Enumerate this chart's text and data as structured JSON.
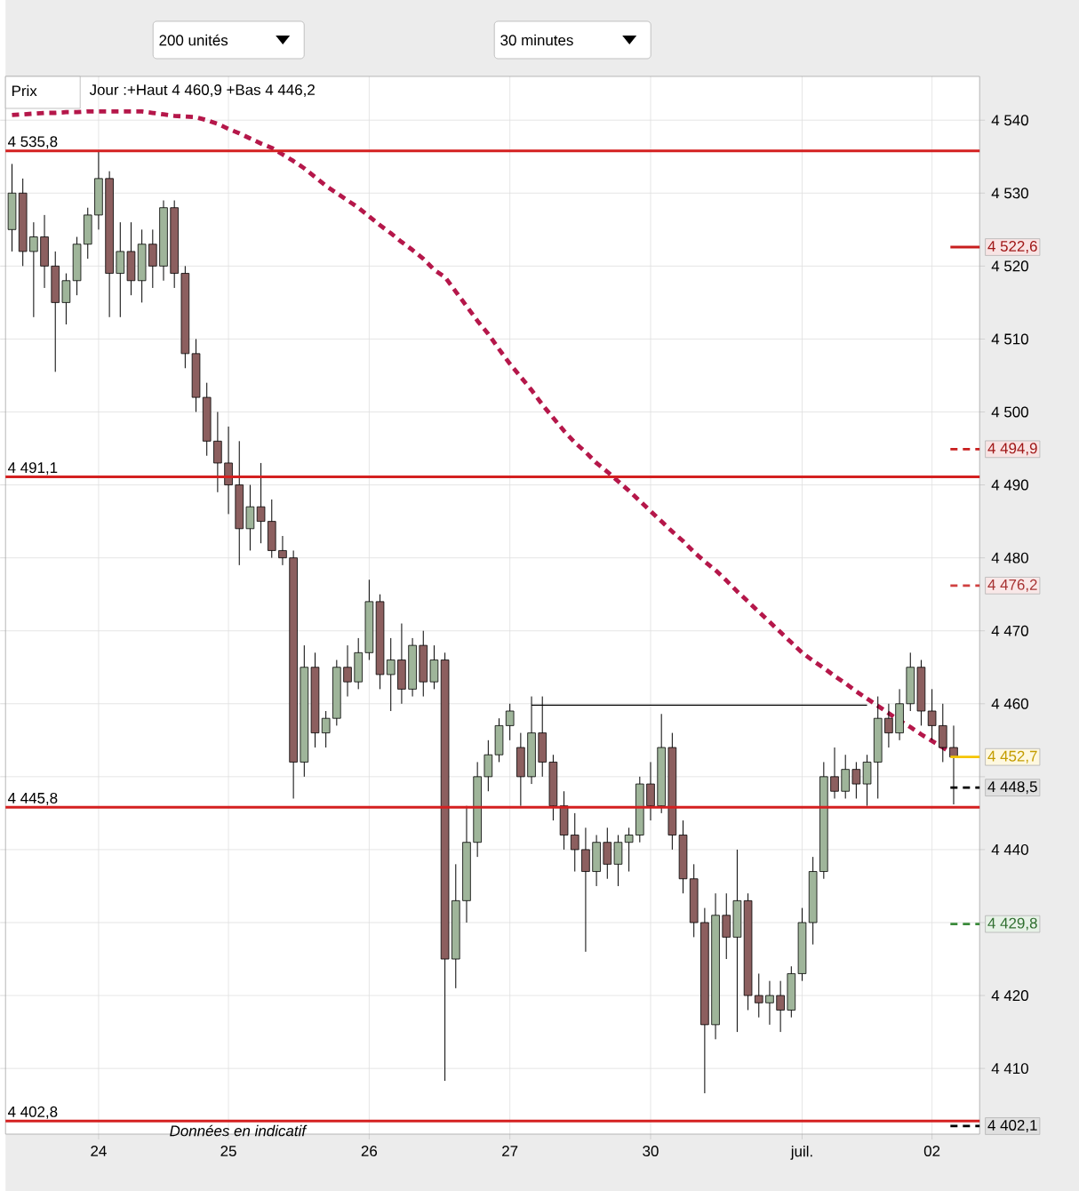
{
  "chart_data": {
    "type": "candlestick",
    "annotations": [
      "200 unités",
      "30 minutes",
      "Prix",
      "Jour :+Haut 4 460,9 +Bas 4 446,2",
      "Données en indicatif"
    ],
    "categories": [
      null,
      null,
      null,
      null,
      null,
      null,
      null,
      null,
      "24",
      null,
      null,
      null,
      null,
      null,
      null,
      null,
      null,
      null,
      null,
      null,
      "25",
      null,
      null,
      null,
      null,
      null,
      null,
      null,
      null,
      null,
      null,
      null,
      null,
      "26",
      null,
      null,
      null,
      null,
      null,
      null,
      null,
      null,
      null,
      null,
      null,
      null,
      "27",
      null,
      null,
      null,
      null,
      null,
      null,
      null,
      null,
      null,
      null,
      null,
      null,
      "30",
      null,
      null,
      null,
      null,
      null,
      null,
      null,
      null,
      null,
      null,
      null,
      null,
      null,
      "juil.",
      null,
      null,
      null,
      null,
      null,
      null,
      null,
      null,
      null,
      null,
      null,
      "02",
      null,
      null
    ],
    "ohlc": [
      [
        4525,
        4534,
        4522,
        4530
      ],
      [
        4530,
        4532,
        4520,
        4522
      ],
      [
        4522,
        4526,
        4513,
        4524
      ],
      [
        4524,
        4527,
        4517,
        4520
      ],
      [
        4520,
        4522,
        4505.5,
        4515
      ],
      [
        4515,
        4519,
        4512,
        4518
      ],
      [
        4518,
        4524,
        4516,
        4523
      ],
      [
        4523,
        4528,
        4521,
        4527
      ],
      [
        4527,
        4535.8,
        4525,
        4532
      ],
      [
        4532,
        4533,
        4513,
        4519
      ],
      [
        4519,
        4526,
        4513,
        4522
      ],
      [
        4522,
        4526,
        4516,
        4518
      ],
      [
        4518,
        4525,
        4515,
        4523
      ],
      [
        4523,
        4525,
        4517,
        4520
      ],
      [
        4520,
        4529,
        4518,
        4528
      ],
      [
        4528,
        4529,
        4517,
        4519
      ],
      [
        4519,
        4520,
        4506,
        4508
      ],
      [
        4508,
        4510,
        4500,
        4502
      ],
      [
        4502,
        4504,
        4494,
        4496
      ],
      [
        4496,
        4500,
        4489,
        4493
      ],
      [
        4493,
        4498,
        4486,
        4490
      ],
      [
        4490,
        4496,
        4479,
        4484
      ],
      [
        4484,
        4490,
        4481,
        4487
      ],
      [
        4487,
        4493,
        4482,
        4485
      ],
      [
        4485,
        4488,
        4480,
        4481
      ],
      [
        4481,
        4483,
        4479,
        4480
      ],
      [
        4480,
        4481,
        4447,
        4452
      ],
      [
        4452,
        4468,
        4450,
        4465
      ],
      [
        4465,
        4467,
        4454,
        4456
      ],
      [
        4456,
        4459,
        4454,
        4458
      ],
      [
        4458,
        4466,
        4457,
        4465
      ],
      [
        4465,
        4468,
        4461,
        4463
      ],
      [
        4463,
        4469,
        4462,
        4467
      ],
      [
        4467,
        4477,
        4466,
        4474
      ],
      [
        4474,
        4475,
        4462,
        4464
      ],
      [
        4464,
        4469,
        4459,
        4466
      ],
      [
        4466,
        4471,
        4460,
        4462
      ],
      [
        4462,
        4469,
        4461,
        4468
      ],
      [
        4468,
        4470,
        4461,
        4463
      ],
      [
        4463,
        4468,
        4462,
        4466
      ],
      [
        4466,
        4467,
        4408.3,
        4425
      ],
      [
        4425,
        4438,
        4421,
        4433
      ],
      [
        4433,
        4446,
        4430,
        4441
      ],
      [
        4441,
        4452,
        4439,
        4450
      ],
      [
        4450,
        4455,
        4448,
        4453
      ],
      [
        4453,
        4458,
        4452,
        4457
      ],
      [
        4457,
        4460,
        4455,
        4459
      ],
      [
        4454,
        4456,
        4446,
        4450
      ],
      [
        4450,
        4461,
        4449,
        4456
      ],
      [
        4456,
        4461,
        4450,
        4452
      ],
      [
        4452,
        4453,
        4444,
        4446
      ],
      [
        4446,
        4448,
        4440,
        4442
      ],
      [
        4442,
        4445,
        4437,
        4440
      ],
      [
        4440,
        4443,
        4426,
        4437
      ],
      [
        4437,
        4442,
        4435,
        4441
      ],
      [
        4441,
        4443,
        4436,
        4438
      ],
      [
        4438,
        4442,
        4435,
        4441
      ],
      [
        4441,
        4443,
        4437,
        4442
      ],
      [
        4442,
        4450,
        4441,
        4449
      ],
      [
        4449,
        4452,
        4444,
        4446
      ],
      [
        4446,
        4458.6,
        4445,
        4454
      ],
      [
        4454,
        4456,
        4440,
        4442
      ],
      [
        4442,
        4444,
        4434,
        4436
      ],
      [
        4436,
        4438,
        4428,
        4430
      ],
      [
        4430,
        4432,
        4406.6,
        4416
      ],
      [
        4416,
        4434,
        4414,
        4431
      ],
      [
        4431,
        4434,
        4425,
        4428
      ],
      [
        4428,
        4440,
        4415,
        4433
      ],
      [
        4433,
        4434,
        4418,
        4420
      ],
      [
        4420,
        4423,
        4417,
        4419
      ],
      [
        4419,
        4422,
        4416,
        4420
      ],
      [
        4420,
        4422,
        4415,
        4418
      ],
      [
        4418,
        4424,
        4417,
        4423
      ],
      [
        4423,
        4432,
        4422,
        4430
      ],
      [
        4430,
        4439,
        4427,
        4437
      ],
      [
        4437,
        4452,
        4436,
        4450
      ],
      [
        4450,
        4454,
        4447,
        4448
      ],
      [
        4448,
        4453,
        4447,
        4451
      ],
      [
        4451,
        4452,
        4447,
        4449
      ],
      [
        4449,
        4453,
        4446,
        4452
      ],
      [
        4452,
        4461,
        4447,
        4458
      ],
      [
        4458,
        4460,
        4454,
        4456
      ],
      [
        4456,
        4462,
        4455,
        4460
      ],
      [
        4460,
        4467,
        4459,
        4465
      ],
      [
        4465,
        4466,
        4457,
        4459
      ],
      [
        4459,
        4462,
        4455,
        4457
      ],
      [
        4457,
        4460,
        4452,
        4454
      ],
      [
        4454,
        4457,
        4446.2,
        4452.7
      ]
    ],
    "series": [
      {
        "type": "line",
        "color": "#b5174a",
        "line_style": "dashed",
        "values": [
          4540.7,
          4540.8,
          4540.9,
          4541.0,
          4541.0,
          4541.1,
          4541.1,
          4541.2,
          4541.2,
          4541.2,
          4541.2,
          4541.2,
          4541.2,
          4541.0,
          4540.8,
          4540.6,
          4540.5,
          4540.4,
          4540.0,
          4539.5,
          4538.8,
          4538.2,
          4537.5,
          4536.8,
          4536.2,
          4535.3,
          4534.4,
          4533.4,
          4532.2,
          4531.0,
          4530.0,
          4529.0,
          4528.0,
          4526.8,
          4525.6,
          4524.5,
          4523.3,
          4522.2,
          4521.0,
          4519.5,
          4518.5,
          4516.5,
          4514.5,
          4512.5,
          4510.7,
          4508.6,
          4506.6,
          4504.8,
          4503.0,
          4501.0,
          4499.2,
          4497.4,
          4495.8,
          4494.5,
          4493.0,
          4491.8,
          4490.5,
          4489.2,
          4487.8,
          4486.4,
          4485.0,
          4483.6,
          4482.3,
          4480.8,
          4479.5,
          4478.3,
          4476.9,
          4475.4,
          4474.0,
          4472.6,
          4471.2,
          4469.8,
          4468.4,
          4467.0,
          4465.9,
          4464.9,
          4463.8,
          4462.8,
          4461.7,
          4460.7,
          4459.7,
          4458.7,
          4457.7,
          4456.8,
          4455.8,
          4454.9,
          4454.0,
          4453.0
        ]
      },
      {
        "type": "line",
        "color": "#000000",
        "line_style": "solid",
        "values": [
          null,
          null,
          null,
          null,
          null,
          null,
          null,
          null,
          null,
          null,
          null,
          null,
          null,
          null,
          null,
          null,
          null,
          null,
          null,
          null,
          null,
          null,
          null,
          null,
          null,
          null,
          null,
          null,
          null,
          null,
          null,
          null,
          null,
          null,
          null,
          null,
          null,
          null,
          null,
          null,
          null,
          null,
          null,
          null,
          null,
          null,
          null,
          null,
          4459.8,
          4459.8,
          4459.8,
          4459.8,
          4459.8,
          4459.8,
          4459.8,
          4459.8,
          4459.8,
          4459.8,
          4459.8,
          4459.8,
          4459.8,
          4459.8,
          4459.8,
          4459.8,
          4459.8,
          4459.8,
          4459.8,
          4459.8,
          4459.8,
          4459.8,
          4459.8,
          4459.8,
          4459.8,
          4459.8,
          4459.8,
          4459.8,
          4459.8,
          4459.8,
          4459.8,
          4459.8,
          null,
          null,
          null,
          null,
          null,
          null,
          null,
          null
        ]
      }
    ],
    "ylim": [
      4401,
      4546
    ],
    "yticks": [
      {
        "value": 4410,
        "label": "4 410"
      },
      {
        "value": 4420,
        "label": "4 420"
      },
      {
        "value": 4430,
        "label": null
      },
      {
        "value": 4440,
        "label": "4 440"
      },
      {
        "value": 4450,
        "label": null
      },
      {
        "value": 4460,
        "label": "4 460"
      },
      {
        "value": 4470,
        "label": "4 470"
      },
      {
        "value": 4480,
        "label": "4 480"
      },
      {
        "value": 4490,
        "label": "4 490"
      },
      {
        "value": 4500,
        "label": "4 500"
      },
      {
        "value": 4510,
        "label": "4 510"
      },
      {
        "value": 4520,
        "label": "4 520"
      },
      {
        "value": 4530,
        "label": "4 530"
      },
      {
        "value": 4540,
        "label": "4 540"
      }
    ],
    "ref_lines": [
      {
        "axis": "y",
        "value": 4535.8,
        "label": "4 535,8",
        "color": "#d42020"
      },
      {
        "axis": "y",
        "value": 4491.1,
        "label": "4 491,1",
        "color": "#d42020"
      },
      {
        "axis": "y",
        "value": 4445.8,
        "label": "4 445,8",
        "color": "#d42020"
      },
      {
        "axis": "y",
        "value": 4402.8,
        "label": "4 402,8",
        "color": "#d42020"
      },
      {
        "axis": "y",
        "value": 4522.6,
        "label": "4 522,6",
        "color": "#c81e1e",
        "line_style": "solid"
      },
      {
        "axis": "y",
        "value": 4494.9,
        "label": "4 494,9",
        "color": "#c81e1e",
        "line_style": "dashed"
      },
      {
        "axis": "y",
        "value": 4476.2,
        "label": "4 476,2",
        "color": "#d04040",
        "line_style": "dashed"
      },
      {
        "axis": "y",
        "value": 4452.7,
        "label": "4 452,7",
        "color": "#f5c400",
        "line_style": "solid"
      },
      {
        "axis": "y",
        "value": 4448.5,
        "label": "4 448,5",
        "color": "#000000",
        "line_style": "dashed"
      },
      {
        "axis": "y",
        "value": 4429.8,
        "label": "4 429,8",
        "color": "#3a8a3a",
        "line_style": "dashed"
      },
      {
        "axis": "y",
        "value": 4402.1,
        "label": "4 402,1",
        "color": "#000000",
        "line_style": "dashed"
      }
    ],
    "grid": true
  }
}
